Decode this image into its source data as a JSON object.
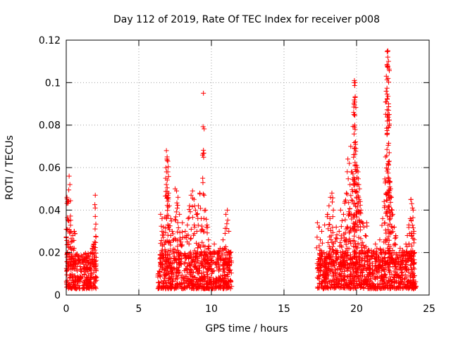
{
  "chart_data": {
    "type": "scatter",
    "title": "Day 112 of 2019, Rate Of TEC Index for receiver p008",
    "xlabel": "GPS time / hours",
    "ylabel": "ROTI / TECUs",
    "xlim": [
      0,
      25
    ],
    "ylim": [
      0,
      0.12
    ],
    "grid": true,
    "marker": "+",
    "color": "#ff0000",
    "x_ticks": [
      0,
      5,
      10,
      15,
      20,
      25
    ],
    "x_tick_labels": [
      "0",
      "5",
      "10",
      "15",
      "20",
      "25"
    ],
    "y_ticks": [
      0,
      0.02,
      0.04,
      0.06,
      0.08,
      0.1,
      0.12
    ],
    "y_tick_labels": [
      "0",
      "0.02",
      "0.04",
      "0.06",
      "0.08",
      "0.1",
      "0.12"
    ],
    "series": [
      {
        "name": "ROTI",
        "points": [
          [
            0.05,
            0.046
          ],
          [
            0.1,
            0.044
          ],
          [
            0.15,
            0.035
          ],
          [
            0.2,
            0.056
          ],
          [
            0.25,
            0.052
          ],
          [
            0.3,
            0.03
          ],
          [
            0.35,
            0.025
          ],
          [
            0.45,
            0.028
          ],
          [
            0.55,
            0.03
          ],
          [
            0.6,
            0.029
          ],
          [
            0.1,
            0.02
          ],
          [
            0.3,
            0.022
          ],
          [
            0.6,
            0.018
          ],
          [
            1.0,
            0.012
          ],
          [
            1.4,
            0.014
          ],
          [
            1.75,
            0.02
          ],
          [
            1.8,
            0.022
          ],
          [
            1.9,
            0.024
          ],
          [
            2.0,
            0.047
          ],
          [
            2.0,
            0.041
          ],
          [
            2.0,
            0.037
          ],
          [
            1.95,
            0.025
          ],
          [
            0.0,
            0.031
          ],
          [
            0.0,
            0.027
          ],
          [
            0.15,
            0.015
          ],
          [
            0.5,
            0.016
          ],
          [
            0.8,
            0.017
          ],
          [
            1.3,
            0.016
          ],
          [
            1.6,
            0.018
          ],
          [
            6.5,
            0.038
          ],
          [
            6.6,
            0.036
          ],
          [
            6.7,
            0.032
          ],
          [
            6.8,
            0.025
          ],
          [
            6.9,
            0.068
          ],
          [
            6.95,
            0.065
          ],
          [
            7.0,
            0.063
          ],
          [
            7.0,
            0.058
          ],
          [
            6.85,
            0.055
          ],
          [
            7.05,
            0.048
          ],
          [
            7.1,
            0.042
          ],
          [
            7.2,
            0.036
          ],
          [
            7.3,
            0.03
          ],
          [
            7.4,
            0.026
          ],
          [
            7.5,
            0.05
          ],
          [
            7.6,
            0.049
          ],
          [
            7.7,
            0.046
          ],
          [
            7.8,
            0.038
          ],
          [
            8.0,
            0.034
          ],
          [
            8.2,
            0.03
          ],
          [
            8.4,
            0.036
          ],
          [
            8.5,
            0.042
          ],
          [
            8.6,
            0.047
          ],
          [
            8.7,
            0.049
          ],
          [
            8.8,
            0.045
          ],
          [
            8.9,
            0.04
          ],
          [
            9.0,
            0.038
          ],
          [
            9.1,
            0.042
          ],
          [
            9.2,
            0.048
          ],
          [
            9.3,
            0.036
          ],
          [
            9.4,
            0.055
          ],
          [
            9.5,
            0.047
          ],
          [
            9.6,
            0.04
          ],
          [
            9.7,
            0.033
          ],
          [
            9.8,
            0.026
          ],
          [
            9.9,
            0.02
          ],
          [
            10.0,
            0.018
          ],
          [
            9.45,
            0.095
          ],
          [
            10.2,
            0.024
          ],
          [
            10.4,
            0.02
          ],
          [
            10.6,
            0.022
          ],
          [
            10.8,
            0.026
          ],
          [
            11.0,
            0.038
          ],
          [
            11.1,
            0.04
          ],
          [
            11.2,
            0.03
          ],
          [
            11.3,
            0.02
          ],
          [
            6.6,
            0.03
          ],
          [
            7.2,
            0.028
          ],
          [
            7.9,
            0.025
          ],
          [
            8.3,
            0.028
          ],
          [
            9.0,
            0.03
          ],
          [
            9.8,
            0.022
          ],
          [
            10.5,
            0.017
          ],
          [
            10.9,
            0.022
          ],
          [
            17.3,
            0.034
          ],
          [
            17.4,
            0.032
          ],
          [
            17.5,
            0.026
          ],
          [
            17.6,
            0.03
          ],
          [
            17.8,
            0.033
          ],
          [
            18.0,
            0.038
          ],
          [
            18.1,
            0.042
          ],
          [
            18.2,
            0.046
          ],
          [
            18.3,
            0.048
          ],
          [
            18.4,
            0.04
          ],
          [
            18.6,
            0.032
          ],
          [
            18.8,
            0.03
          ],
          [
            18.9,
            0.04
          ],
          [
            19.0,
            0.035
          ],
          [
            19.1,
            0.038
          ],
          [
            19.2,
            0.044
          ],
          [
            19.3,
            0.048
          ],
          [
            19.4,
            0.064
          ],
          [
            19.5,
            0.062
          ],
          [
            19.55,
            0.052
          ],
          [
            19.6,
            0.07
          ],
          [
            19.7,
            0.058
          ],
          [
            19.75,
            0.057
          ],
          [
            19.8,
            0.086
          ],
          [
            19.85,
            0.1
          ],
          [
            19.85,
            0.101
          ],
          [
            19.9,
            0.1
          ],
          [
            19.9,
            0.093
          ],
          [
            19.9,
            0.078
          ],
          [
            19.95,
            0.069
          ],
          [
            20.0,
            0.061
          ],
          [
            20.05,
            0.06
          ],
          [
            20.1,
            0.058
          ],
          [
            20.15,
            0.052
          ],
          [
            20.2,
            0.05
          ],
          [
            20.25,
            0.044
          ],
          [
            20.3,
            0.04
          ],
          [
            20.4,
            0.034
          ],
          [
            20.5,
            0.032
          ],
          [
            20.6,
            0.028
          ],
          [
            20.7,
            0.034
          ],
          [
            21.3,
            0.024
          ],
          [
            21.4,
            0.022
          ],
          [
            21.6,
            0.026
          ],
          [
            21.7,
            0.02
          ],
          [
            21.8,
            0.036
          ],
          [
            21.9,
            0.044
          ],
          [
            21.95,
            0.042
          ],
          [
            22.0,
            0.065
          ],
          [
            22.05,
            0.103
          ],
          [
            22.1,
            0.108
          ],
          [
            22.15,
            0.115
          ],
          [
            22.15,
            0.112
          ],
          [
            22.2,
            0.11
          ],
          [
            22.2,
            0.09
          ],
          [
            22.2,
            0.087
          ],
          [
            22.25,
            0.085
          ],
          [
            22.25,
            0.067
          ],
          [
            22.3,
            0.053
          ],
          [
            22.35,
            0.05
          ],
          [
            22.4,
            0.046
          ],
          [
            22.5,
            0.038
          ],
          [
            22.6,
            0.032
          ],
          [
            22.7,
            0.028
          ],
          [
            23.0,
            0.022
          ],
          [
            23.2,
            0.02
          ],
          [
            23.4,
            0.024
          ],
          [
            23.5,
            0.028
          ],
          [
            23.6,
            0.033
          ],
          [
            23.7,
            0.036
          ],
          [
            23.75,
            0.045
          ],
          [
            23.8,
            0.043
          ],
          [
            23.85,
            0.041
          ],
          [
            23.9,
            0.04
          ],
          [
            23.95,
            0.03
          ],
          [
            24.0,
            0.02
          ],
          [
            17.6,
            0.02
          ],
          [
            18.2,
            0.022
          ],
          [
            18.7,
            0.02
          ],
          [
            19.3,
            0.026
          ],
          [
            20.1,
            0.024
          ],
          [
            20.8,
            0.02
          ],
          [
            21.5,
            0.018
          ],
          [
            22.3,
            0.022
          ],
          [
            22.9,
            0.016
          ],
          [
            23.4,
            0.016
          ]
        ],
        "dense_bands": [
          {
            "x_range": [
              0,
              2.1
            ],
            "y_range": [
              0.003,
              0.015
            ],
            "count": 260
          },
          {
            "x_range": [
              6.3,
              11.4
            ],
            "y_range": [
              0.003,
              0.016
            ],
            "count": 620
          },
          {
            "x_range": [
              17.3,
              24.1
            ],
            "y_range": [
              0.003,
              0.016
            ],
            "count": 820
          }
        ]
      }
    ]
  }
}
